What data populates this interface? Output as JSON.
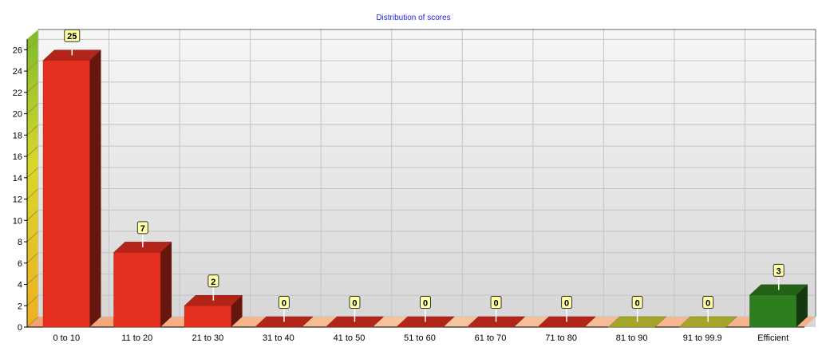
{
  "chart_data": {
    "type": "bar",
    "title": "Distribution of scores",
    "xlabel": "",
    "ylabel": "",
    "categories": [
      "0 to 10",
      "11 to 20",
      "21 to 30",
      "31 to 40",
      "41 to 50",
      "51 to 60",
      "61 to 70",
      "71 to 80",
      "81 to 90",
      "91 to 99.9",
      "Efficient"
    ],
    "values": [
      25,
      7,
      2,
      0,
      0,
      0,
      0,
      0,
      0,
      0,
      3
    ],
    "data_labels": [
      "25",
      "7",
      "2",
      "0",
      "0",
      "0",
      "0",
      "0",
      "0",
      "0",
      "3"
    ],
    "bar_colors": [
      "#e53020",
      "#e53020",
      "#e53020",
      "#e53020",
      "#e53020",
      "#e53020",
      "#e53020",
      "#e53020",
      "#d4d436",
      "#d4d436",
      "#2e7d1e"
    ],
    "ylim": [
      0,
      27
    ],
    "yticks": [
      "0",
      "2",
      "4",
      "6",
      "8",
      "10",
      "12",
      "14",
      "16",
      "18",
      "20",
      "22",
      "24",
      "26"
    ],
    "grid": true,
    "legend": "none",
    "style": "3d-bars"
  }
}
